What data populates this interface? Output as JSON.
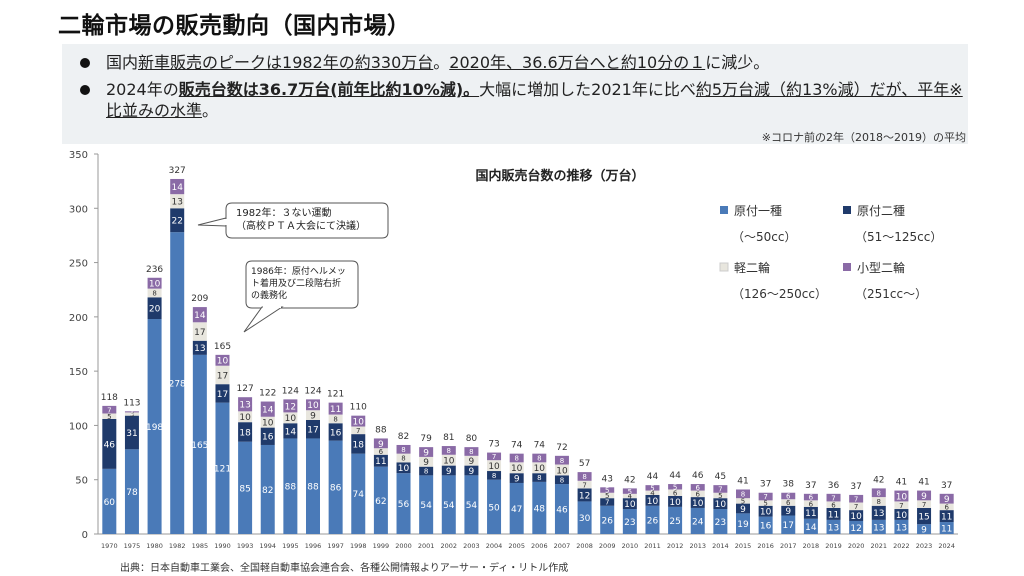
{
  "page": {
    "title": "二輪市場の販売動向（国内市場）",
    "bullet1": {
      "a": "国内",
      "b": "新車販売のピークは1982年の約330万台",
      "c": "。",
      "d": "2020年、36.6万台へと約10分の１",
      "e": "に減少。"
    },
    "bullet2": {
      "a": "2024年の",
      "b": "販売台数は36.7万台(前年比約10%減)。",
      "c": "大幅に増加した2021年に比べ",
      "d": "約5万台減（約13%減）だが、平年※比並みの水準",
      "e": "。"
    },
    "note": "※コロナ前の2年（2018～2019）の平均",
    "source": "出典：日本自動車工業会、全国軽自動車協会連合会、各種公開情報よりアーサー・ディ・リトル作成"
  },
  "annotations": [
    {
      "lines": [
        "1982年：３ない運動",
        "（高校ＰＴＡ大会にて決議）"
      ]
    },
    {
      "lines": [
        "1986年：原付ヘルメッ",
        "ト着用及び二段階右折",
        "の義務化"
      ]
    }
  ],
  "chart_data": {
    "type": "bar",
    "stacked": true,
    "title": "国内販売台数の推移（万台）",
    "categories": [
      "1970",
      "1975",
      "1980",
      "1982",
      "1985",
      "1990",
      "1993",
      "1994",
      "1995",
      "1996",
      "1997",
      "1998",
      "1999",
      "2000",
      "2001",
      "2002",
      "2003",
      "2004",
      "2005",
      "2006",
      "2007",
      "2008",
      "2009",
      "2010",
      "2011",
      "2012",
      "2013",
      "2014",
      "2015",
      "2016",
      "2017",
      "2018",
      "2019",
      "2020",
      "2021",
      "2022",
      "2023",
      "2024"
    ],
    "series": [
      {
        "name": "原付一種",
        "sub": "（～50cc）",
        "color": "#4a7ab8",
        "values": [
          60,
          78,
          198,
          278,
          165,
          121,
          85,
          82,
          88,
          88,
          86,
          74,
          62,
          56,
          54,
          54,
          54,
          50,
          47,
          48,
          46,
          30,
          26,
          23,
          26,
          25,
          24,
          23,
          19,
          16,
          17,
          14,
          13,
          12,
          13,
          13,
          9,
          11
        ]
      },
      {
        "name": "原付二種",
        "sub": "（51～125cc）",
        "color": "#1f3a6b",
        "values": [
          46,
          31,
          20,
          22,
          13,
          17,
          18,
          16,
          14,
          17,
          16,
          18,
          11,
          10,
          8,
          9,
          9,
          8,
          9,
          8,
          8,
          12,
          7,
          10,
          10,
          10,
          10,
          10,
          9,
          10,
          9,
          11,
          11,
          10,
          13,
          10,
          15,
          11
        ]
      },
      {
        "name": "軽二輪",
        "sub": "（126～250cc）",
        "color": "#e8e6de",
        "values": [
          5,
          3,
          8,
          13,
          17,
          17,
          10,
          10,
          10,
          9,
          8,
          7,
          6,
          8,
          9,
          10,
          9,
          10,
          10,
          10,
          10,
          7,
          5,
          4,
          4,
          6,
          6,
          5,
          5,
          5,
          6,
          6,
          6,
          7,
          8,
          7,
          7,
          6
        ]
      },
      {
        "name": "小型二輪",
        "sub": "（251cc～）",
        "color": "#8a6aa6",
        "values": [
          7,
          1,
          10,
          14,
          14,
          10,
          13,
          14,
          12,
          10,
          11,
          10,
          9,
          8,
          9,
          8,
          8,
          7,
          8,
          8,
          8,
          8,
          5,
          5,
          5,
          5,
          6,
          7,
          8,
          7,
          6,
          6,
          7,
          7,
          8,
          10,
          9,
          9
        ]
      }
    ],
    "totals": [
      118,
      113,
      236,
      327,
      209,
      165,
      127,
      122,
      124,
      124,
      121,
      110,
      88,
      82,
      79,
      81,
      80,
      73,
      74,
      74,
      72,
      57,
      43,
      42,
      44,
      44,
      46,
      45,
      41,
      37,
      38,
      37,
      36,
      37,
      42,
      41,
      41,
      37
    ],
    "ylim": [
      0,
      350
    ],
    "yticks": [
      0,
      50,
      100,
      150,
      200,
      250,
      300,
      350
    ],
    "xlabel": "",
    "ylabel": "",
    "legend": "top-right"
  }
}
